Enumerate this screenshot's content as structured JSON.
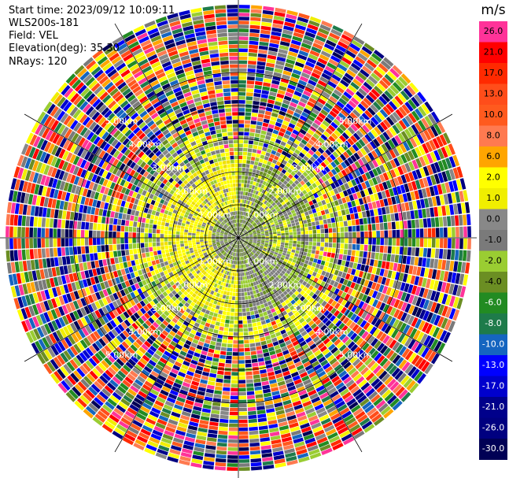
{
  "header": {
    "start_time": "Start time: 2023/09/12 10:09:11",
    "instrument": "WLS200s-181",
    "field": "Field: VEL",
    "elevation": "Elevation(deg): 35.30",
    "nrays": "NRays: 120"
  },
  "chart_data": {
    "type": "heatmap",
    "subtype": "polar-ppi",
    "field": "VEL",
    "n_rays": 120,
    "range_rings_km": [
      1.0,
      2.0,
      3.0,
      4.0,
      5.0
    ],
    "range_ring_labels": [
      "1.00km",
      "2.00km",
      "3.00km",
      "4.00km",
      "5.00km"
    ],
    "azimuth_spokes_deg": [
      0,
      30,
      60,
      90,
      120,
      150,
      180,
      210,
      240,
      270,
      300,
      330
    ],
    "grid": true,
    "colorbar": {
      "unit": "m/s",
      "placement": "right",
      "tick_labels": [
        "26.0",
        "21.0",
        "17.0",
        "13.0",
        "10.0",
        "8.0",
        "6.0",
        "2.0",
        "1.0",
        "0.0",
        "-1.0",
        "-2.0",
        "-4.0",
        "-6.0",
        "-8.0",
        "-10.0",
        "-13.0",
        "-17.0",
        "-21.0",
        "-26.0",
        "-30.0"
      ],
      "colors": [
        "#ff3399",
        "#ff0000",
        "#ff2a00",
        "#ff4d1a",
        "#ff5a1e",
        "#ff7a50",
        "#ffa500",
        "#ffff00",
        "#f0ee00",
        "#888888",
        "#7a7a7a",
        "#9acd32",
        "#6b8e23",
        "#228b22",
        "#1e7b4a",
        "#1565c0",
        "#0000ff",
        "#0000cd",
        "#00008b",
        "#000080",
        "#000055"
      ]
    },
    "regions": [
      {
        "description": "near-range annulus west half",
        "range_km": [
          0.8,
          2.3
        ],
        "dominant_velocity_ms": [
          1.0,
          2.0
        ]
      },
      {
        "description": "near-range annulus east half",
        "range_km": [
          0.8,
          2.3
        ],
        "dominant_velocity_ms": [
          -2.0,
          -1.0
        ]
      },
      {
        "description": "inner core",
        "range_km": [
          0.0,
          0.8
        ],
        "dominant_velocity_ms": [
          -1.0,
          0.0
        ]
      },
      {
        "description": "mid range ring",
        "range_km": [
          2.3,
          3.3
        ],
        "dominant_velocity_ms": [
          -2.0,
          2.0
        ]
      },
      {
        "description": "far range noise",
        "range_km": [
          3.3,
          6.5
        ],
        "dominant_velocity_ms": [
          -30.0,
          26.0
        ]
      }
    ]
  }
}
